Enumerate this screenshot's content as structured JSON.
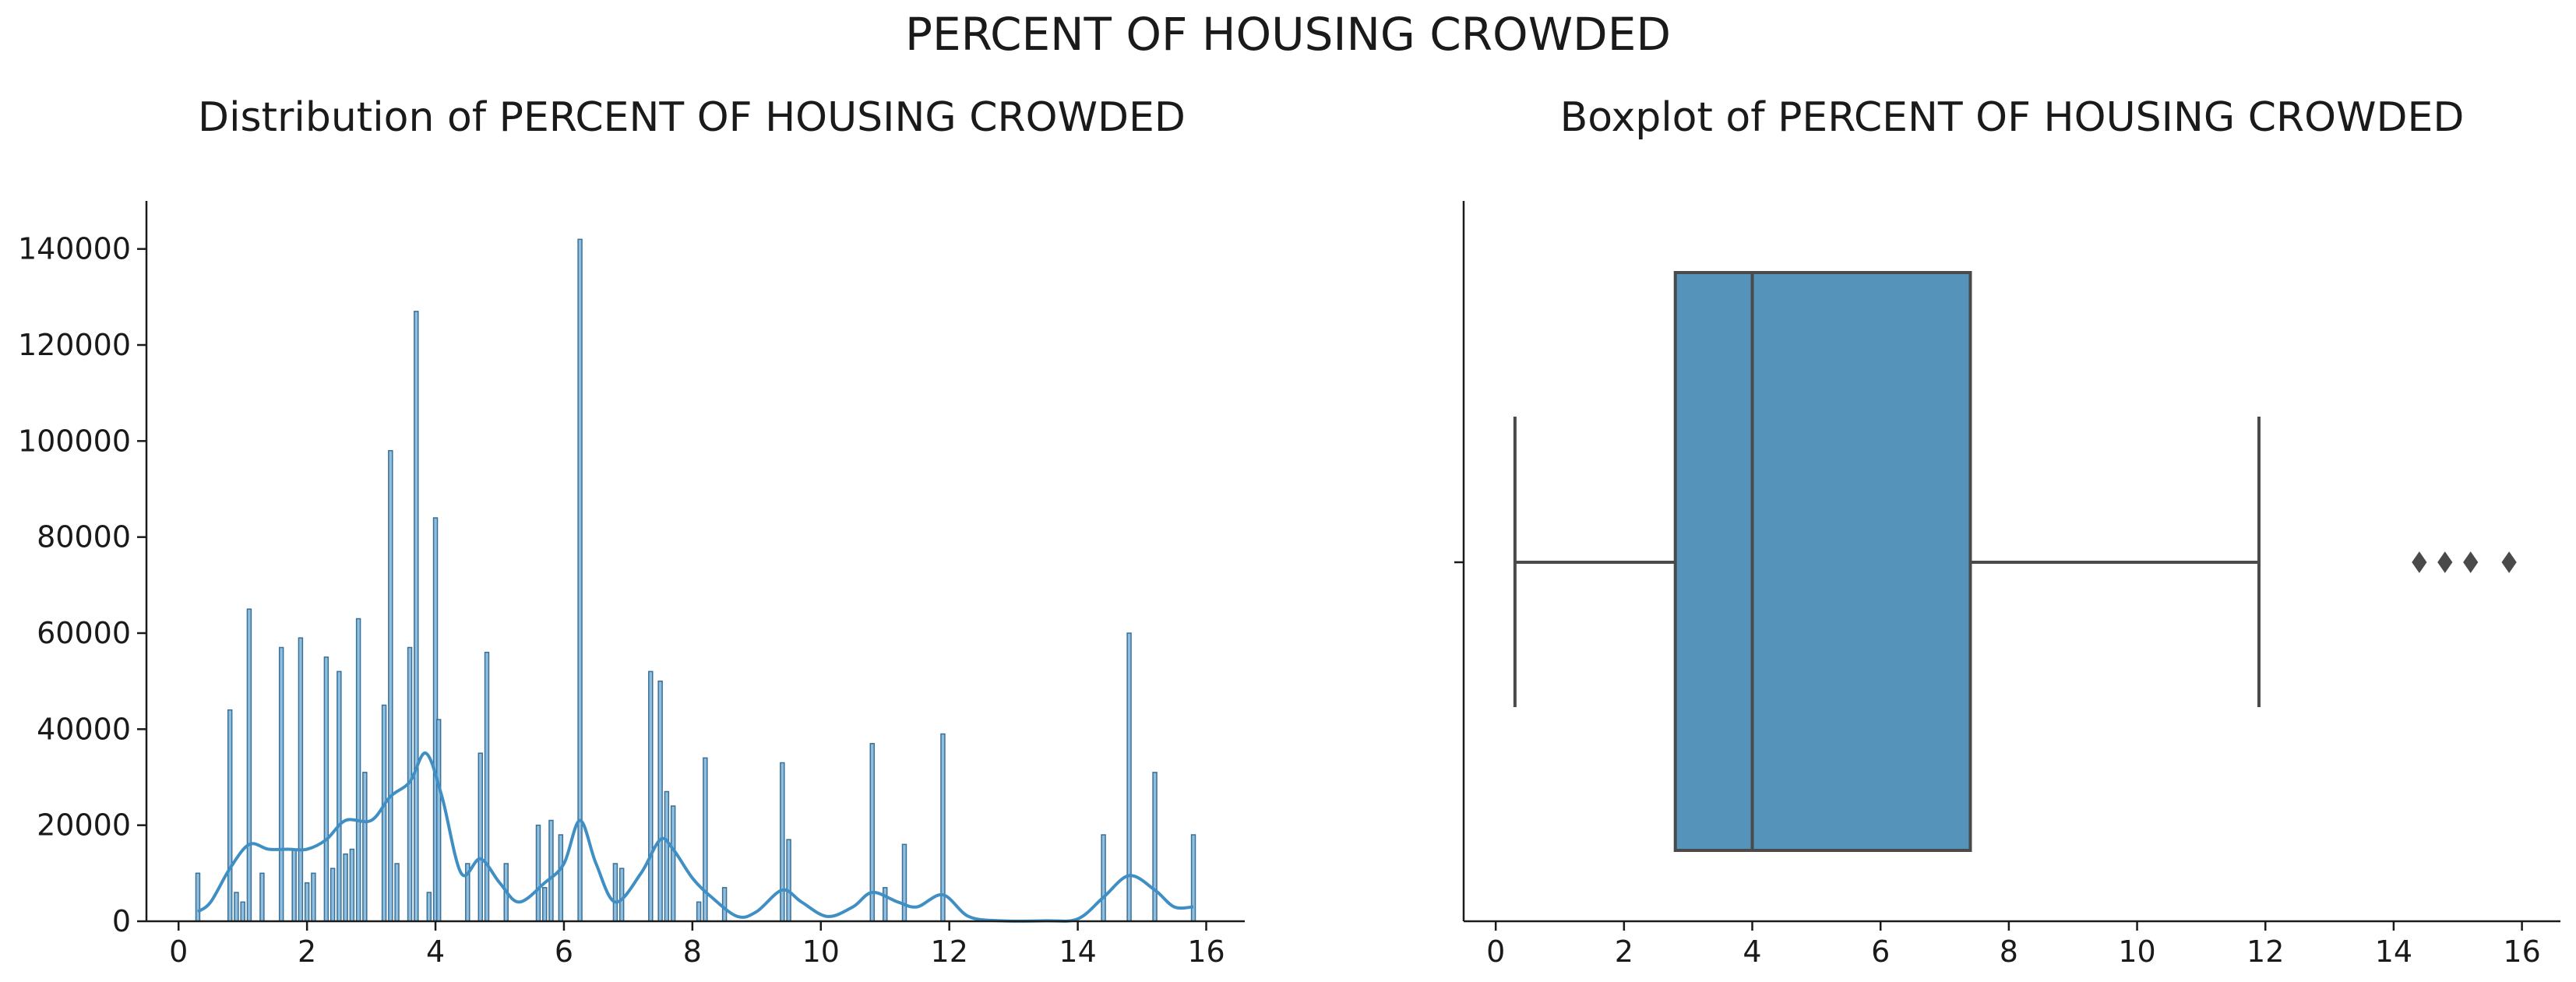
{
  "figure": {
    "suptitle": "PERCENT OF HOUSING CROWDED"
  },
  "colors": {
    "bar_fill": "#8fbfe0",
    "bar_stroke": "#3a6f96",
    "kde": "#3f8fc5",
    "box_fill": "#5693ba",
    "box_line": "#4a4a4a"
  },
  "chart_data": [
    {
      "type": "bar",
      "chart": "histogram",
      "title": "Distribution of PERCENT OF HOUSING CROWDED",
      "xlabel": "",
      "ylabel": "",
      "xlim": [
        -0.5,
        16.6
      ],
      "ylim": [
        0,
        150000
      ],
      "xticks": [
        0,
        2,
        4,
        6,
        8,
        10,
        12,
        14,
        16
      ],
      "yticks": [
        0,
        20000,
        40000,
        60000,
        80000,
        100000,
        120000,
        140000
      ],
      "bins": [
        {
          "x": 0.3,
          "count": 10000
        },
        {
          "x": 0.8,
          "count": 44000
        },
        {
          "x": 0.9,
          "count": 6000
        },
        {
          "x": 1.0,
          "count": 4000
        },
        {
          "x": 1.1,
          "count": 65000
        },
        {
          "x": 1.3,
          "count": 10000
        },
        {
          "x": 1.6,
          "count": 57000
        },
        {
          "x": 1.8,
          "count": 15000
        },
        {
          "x": 1.9,
          "count": 59000
        },
        {
          "x": 2.0,
          "count": 8000
        },
        {
          "x": 2.1,
          "count": 10000
        },
        {
          "x": 2.3,
          "count": 55000
        },
        {
          "x": 2.4,
          "count": 11000
        },
        {
          "x": 2.5,
          "count": 52000
        },
        {
          "x": 2.6,
          "count": 14000
        },
        {
          "x": 2.7,
          "count": 15000
        },
        {
          "x": 2.8,
          "count": 63000
        },
        {
          "x": 2.9,
          "count": 31000
        },
        {
          "x": 3.2,
          "count": 45000
        },
        {
          "x": 3.3,
          "count": 98000
        },
        {
          "x": 3.4,
          "count": 12000
        },
        {
          "x": 3.6,
          "count": 57000
        },
        {
          "x": 3.7,
          "count": 127000
        },
        {
          "x": 3.9,
          "count": 6000
        },
        {
          "x": 4.0,
          "count": 84000
        },
        {
          "x": 4.05,
          "count": 42000
        },
        {
          "x": 4.5,
          "count": 12000
        },
        {
          "x": 4.7,
          "count": 35000
        },
        {
          "x": 4.8,
          "count": 56000
        },
        {
          "x": 5.1,
          "count": 12000
        },
        {
          "x": 5.6,
          "count": 20000
        },
        {
          "x": 5.7,
          "count": 7000
        },
        {
          "x": 5.8,
          "count": 21000
        },
        {
          "x": 5.95,
          "count": 18000
        },
        {
          "x": 6.25,
          "count": 142000
        },
        {
          "x": 6.8,
          "count": 12000
        },
        {
          "x": 6.9,
          "count": 11000
        },
        {
          "x": 7.35,
          "count": 52000
        },
        {
          "x": 7.5,
          "count": 50000
        },
        {
          "x": 7.6,
          "count": 27000
        },
        {
          "x": 7.7,
          "count": 24000
        },
        {
          "x": 8.1,
          "count": 4000
        },
        {
          "x": 8.2,
          "count": 34000
        },
        {
          "x": 8.5,
          "count": 7000
        },
        {
          "x": 9.4,
          "count": 33000
        },
        {
          "x": 9.5,
          "count": 17000
        },
        {
          "x": 10.8,
          "count": 37000
        },
        {
          "x": 11.0,
          "count": 7000
        },
        {
          "x": 11.3,
          "count": 16000
        },
        {
          "x": 11.9,
          "count": 39000
        },
        {
          "x": 14.4,
          "count": 18000
        },
        {
          "x": 14.8,
          "count": 60000
        },
        {
          "x": 15.2,
          "count": 31000
        },
        {
          "x": 15.8,
          "count": 18000
        }
      ],
      "kde": [
        [
          0.3,
          2000
        ],
        [
          0.5,
          4000
        ],
        [
          0.8,
          11000
        ],
        [
          1.1,
          16000
        ],
        [
          1.4,
          15000
        ],
        [
          1.7,
          15000
        ],
        [
          2.0,
          15000
        ],
        [
          2.3,
          17000
        ],
        [
          2.6,
          21000
        ],
        [
          3.0,
          21000
        ],
        [
          3.3,
          26000
        ],
        [
          3.6,
          29000
        ],
        [
          3.85,
          35000
        ],
        [
          4.1,
          26000
        ],
        [
          4.4,
          10000
        ],
        [
          4.7,
          13000
        ],
        [
          5.0,
          8000
        ],
        [
          5.3,
          4000
        ],
        [
          5.7,
          8000
        ],
        [
          6.0,
          12000
        ],
        [
          6.25,
          21000
        ],
        [
          6.5,
          12000
        ],
        [
          6.8,
          4000
        ],
        [
          7.2,
          10000
        ],
        [
          7.5,
          17000
        ],
        [
          7.7,
          15000
        ],
        [
          8.0,
          9000
        ],
        [
          8.3,
          5000
        ],
        [
          8.7,
          1000
        ],
        [
          9.0,
          2000
        ],
        [
          9.4,
          6500
        ],
        [
          9.7,
          4000
        ],
        [
          10.1,
          1000
        ],
        [
          10.5,
          3000
        ],
        [
          10.8,
          6000
        ],
        [
          11.2,
          4000
        ],
        [
          11.5,
          3000
        ],
        [
          11.9,
          5500
        ],
        [
          12.3,
          1000
        ],
        [
          12.8,
          100
        ],
        [
          13.5,
          100
        ],
        [
          14.0,
          500
        ],
        [
          14.4,
          5000
        ],
        [
          14.8,
          9500
        ],
        [
          15.2,
          6500
        ],
        [
          15.5,
          3000
        ],
        [
          15.8,
          3000
        ]
      ]
    },
    {
      "type": "boxplot",
      "title": "Boxplot of PERCENT OF HOUSING CROWDED",
      "xlabel": "",
      "ylabel": "",
      "xlim": [
        -0.5,
        16.6
      ],
      "xticks": [
        0,
        2,
        4,
        6,
        8,
        10,
        12,
        14,
        16
      ],
      "whisker_low": 0.3,
      "q1": 2.8,
      "median": 4.0,
      "q3": 7.4,
      "whisker_high": 11.9,
      "outliers": [
        14.4,
        14.8,
        15.2,
        15.8
      ]
    }
  ]
}
